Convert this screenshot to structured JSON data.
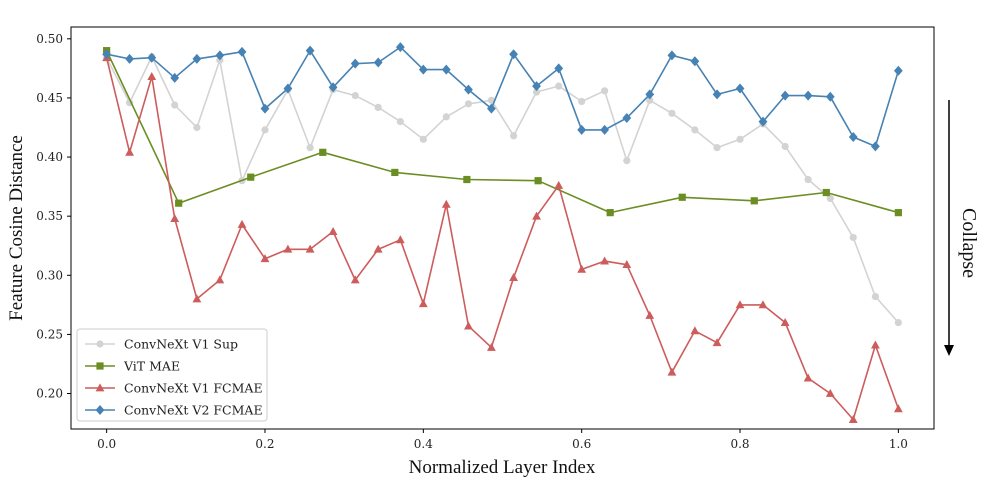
{
  "chart_data": {
    "type": "line",
    "title": "",
    "xlabel": "Normalized Layer Index",
    "ylabel": "Feature Cosine Distance",
    "xlim": [
      -0.045,
      1.045
    ],
    "ylim": [
      0.17,
      0.51
    ],
    "x_ticks": [
      0.0,
      0.2,
      0.4,
      0.6,
      0.8,
      1.0
    ],
    "x_tick_labels": [
      "0.0",
      "0.2",
      "0.4",
      "0.6",
      "0.8",
      "1.0"
    ],
    "y_ticks": [
      0.2,
      0.25,
      0.3,
      0.35,
      0.4,
      0.45,
      0.5
    ],
    "y_tick_labels": [
      "0.20",
      "0.25",
      "0.30",
      "0.35",
      "0.40",
      "0.45",
      "0.50"
    ],
    "grid": false,
    "legend_position": "lower-left",
    "annotation": {
      "text": "Collapse",
      "arrow": "down",
      "placement": "right"
    },
    "series": [
      {
        "name": "ConvNeXt V1 Sup",
        "color": "#d3d3d3",
        "marker": "circle",
        "x": [
          0.0,
          0.029,
          0.057,
          0.086,
          0.114,
          0.143,
          0.171,
          0.2,
          0.229,
          0.257,
          0.286,
          0.314,
          0.343,
          0.371,
          0.4,
          0.429,
          0.457,
          0.486,
          0.514,
          0.543,
          0.571,
          0.6,
          0.629,
          0.657,
          0.686,
          0.714,
          0.743,
          0.771,
          0.8,
          0.829,
          0.857,
          0.886,
          0.914,
          0.943,
          0.971,
          1.0
        ],
        "y": [
          0.484,
          0.446,
          0.485,
          0.444,
          0.425,
          0.482,
          0.38,
          0.423,
          0.457,
          0.408,
          0.457,
          0.452,
          0.442,
          0.43,
          0.415,
          0.434,
          0.445,
          0.448,
          0.418,
          0.455,
          0.46,
          0.447,
          0.456,
          0.397,
          0.448,
          0.437,
          0.423,
          0.408,
          0.415,
          0.428,
          0.409,
          0.381,
          0.365,
          0.332,
          0.282,
          0.26
        ]
      },
      {
        "name": "ViT MAE",
        "color": "#6b8e23",
        "marker": "square",
        "x": [
          0.0,
          0.091,
          0.182,
          0.273,
          0.364,
          0.455,
          0.545,
          0.636,
          0.727,
          0.818,
          0.909,
          1.0
        ],
        "y": [
          0.49,
          0.361,
          0.383,
          0.404,
          0.387,
          0.381,
          0.38,
          0.353,
          0.366,
          0.363,
          0.37,
          0.353
        ]
      },
      {
        "name": "ConvNeXt V1 FCMAE",
        "color": "#cd5c5c",
        "marker": "triangle",
        "x": [
          0.0,
          0.029,
          0.057,
          0.086,
          0.114,
          0.143,
          0.171,
          0.2,
          0.229,
          0.257,
          0.286,
          0.314,
          0.343,
          0.371,
          0.4,
          0.429,
          0.457,
          0.486,
          0.514,
          0.543,
          0.571,
          0.6,
          0.629,
          0.657,
          0.686,
          0.714,
          0.743,
          0.771,
          0.8,
          0.829,
          0.857,
          0.886,
          0.914,
          0.943,
          0.971,
          1.0
        ],
        "y": [
          0.484,
          0.404,
          0.468,
          0.348,
          0.28,
          0.296,
          0.343,
          0.314,
          0.322,
          0.322,
          0.337,
          0.296,
          0.322,
          0.33,
          0.276,
          0.36,
          0.257,
          0.239,
          0.298,
          0.35,
          0.376,
          0.305,
          0.312,
          0.309,
          0.266,
          0.218,
          0.253,
          0.243,
          0.275,
          0.275,
          0.26,
          0.213,
          0.2,
          0.178,
          0.241,
          0.187
        ]
      },
      {
        "name": "ConvNeXt V2 FCMAE",
        "color": "#4682b4",
        "marker": "diamond",
        "x": [
          0.0,
          0.029,
          0.057,
          0.086,
          0.114,
          0.143,
          0.171,
          0.2,
          0.229,
          0.257,
          0.286,
          0.314,
          0.343,
          0.371,
          0.4,
          0.429,
          0.457,
          0.486,
          0.514,
          0.543,
          0.571,
          0.6,
          0.629,
          0.657,
          0.686,
          0.714,
          0.743,
          0.771,
          0.8,
          0.829,
          0.857,
          0.886,
          0.914,
          0.943,
          0.971,
          1.0
        ],
        "y": [
          0.487,
          0.483,
          0.484,
          0.467,
          0.483,
          0.486,
          0.489,
          0.441,
          0.458,
          0.49,
          0.459,
          0.479,
          0.48,
          0.493,
          0.474,
          0.474,
          0.457,
          0.441,
          0.487,
          0.46,
          0.475,
          0.423,
          0.423,
          0.433,
          0.453,
          0.486,
          0.481,
          0.453,
          0.458,
          0.43,
          0.452,
          0.452,
          0.451,
          0.417,
          0.409,
          0.473
        ]
      }
    ]
  }
}
